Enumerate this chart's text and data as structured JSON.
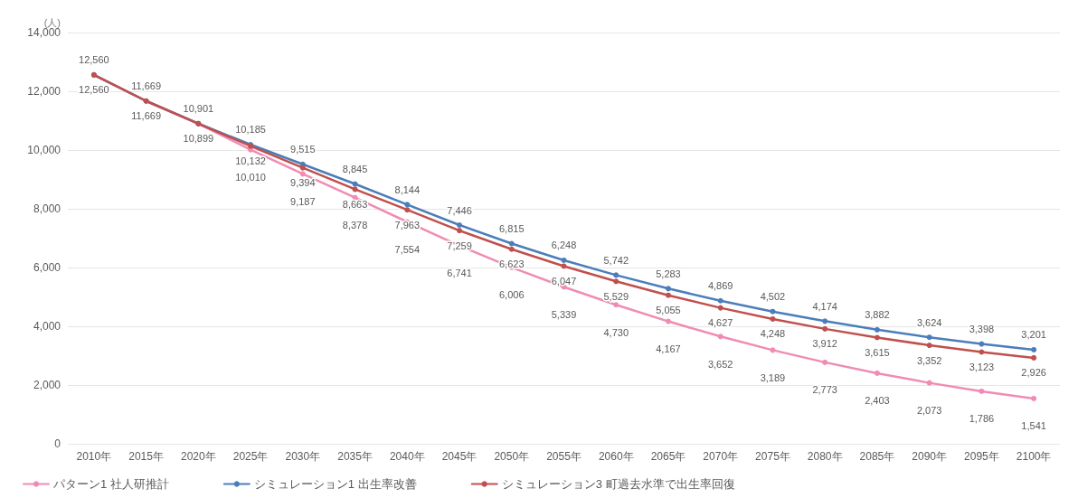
{
  "chart_data": {
    "type": "line",
    "ylabel": "(人)",
    "categories": [
      "2010年",
      "2015年",
      "2020年",
      "2025年",
      "2030年",
      "2035年",
      "2040年",
      "2045年",
      "2050年",
      "2055年",
      "2060年",
      "2065年",
      "2070年",
      "2075年",
      "2080年",
      "2085年",
      "2090年",
      "2095年",
      "2100年"
    ],
    "series": [
      {
        "name": "パターン1 社人研推計",
        "color": "#f08cb4",
        "values": [
          12560,
          11669,
          10899,
          10010,
          9187,
          8378,
          7554,
          6741,
          6006,
          5339,
          4730,
          4167,
          3652,
          3189,
          2773,
          2403,
          2073,
          1786,
          1541
        ],
        "value_labels": [
          null,
          null,
          null,
          "10,010",
          "9,187",
          "8,378",
          "7,554",
          "6,741",
          "6,006",
          "5,339",
          "4,730",
          "4,167",
          "3,652",
          "3,189",
          "2,773",
          "2,403",
          "2,073",
          "1,786",
          "1,541"
        ]
      },
      {
        "name": "シミュレーション1 出生率改善",
        "color": "#4a7ebb",
        "values": [
          12560,
          11669,
          10901,
          10185,
          9515,
          8845,
          8144,
          7446,
          6815,
          6248,
          5742,
          5283,
          4869,
          4502,
          4174,
          3882,
          3624,
          3398,
          3201
        ],
        "value_labels": [
          "12,560",
          "11,669",
          "10,901",
          "10,185",
          "9,515",
          "8,845",
          "8,144",
          "7,446",
          "6,815",
          "6,248",
          "5,742",
          "5,283",
          "4,869",
          "4,502",
          "4,174",
          "3,882",
          "3,624",
          "3,398",
          "3,201"
        ]
      },
      {
        "name": "シミュレーション3 町過去水準で出生率回復",
        "color": "#c0504d",
        "values": [
          12560,
          11669,
          10899,
          10132,
          9394,
          8663,
          7963,
          7259,
          6623,
          6047,
          5529,
          5055,
          4627,
          4248,
          3912,
          3615,
          3352,
          3123,
          2926
        ],
        "value_labels": [
          "12,560",
          "11,669",
          "10,899",
          "10,132",
          "9,394",
          "8,663",
          "7,963",
          "7,259",
          "6,623",
          "6,047",
          "5,529",
          "5,055",
          "4,627",
          "4,248",
          "3,912",
          "3,615",
          "3,352",
          "3,123",
          "2,926"
        ]
      }
    ],
    "ylim": [
      0,
      14000
    ],
    "yticks": [
      0,
      {
        "value": 2000,
        "label": "2,000"
      },
      {
        "value": 4000,
        "label": "4,000"
      },
      {
        "value": 6000,
        "label": "6,000"
      },
      {
        "value": 8000,
        "label": "8,000"
      },
      {
        "value": 10000,
        "label": "10,000"
      },
      {
        "value": 12000,
        "label": "12,000"
      },
      {
        "value": 14000,
        "label": "14,000"
      }
    ],
    "grid": "y",
    "legend": "bottom left",
    "marker": "circle",
    "line_style": "solid"
  }
}
